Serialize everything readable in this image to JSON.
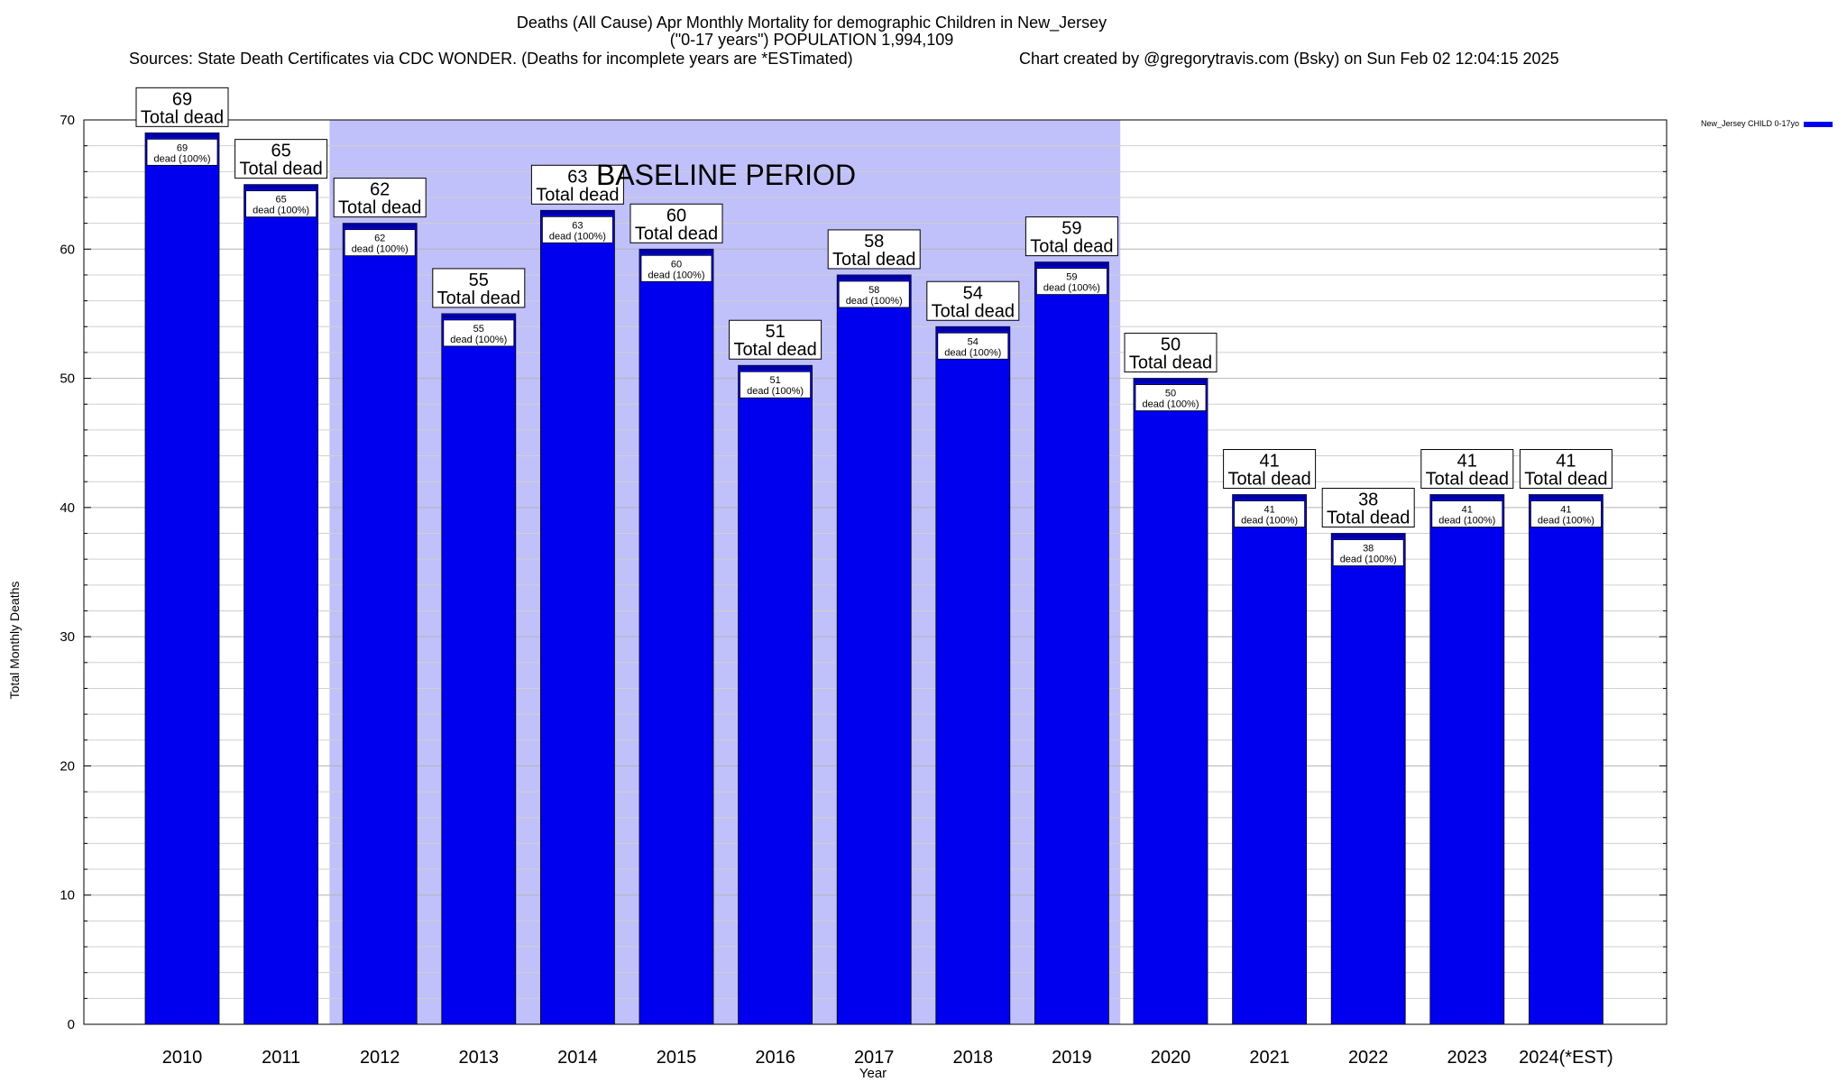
{
  "header": {
    "line1": "Deaths (All Cause) Apr Monthly Mortality for demographic Children in New_Jersey",
    "line2": "(\"0-17 years\") POPULATION 1,994,109",
    "sources": "Sources: State Death Certificates via CDC WONDER. (Deaths for incomplete years are *ESTimated)",
    "credit": "Chart created by @gregorytravis.com (Bsky) on Sun Feb 02 12:04:15 2025"
  },
  "chart_data": {
    "type": "bar",
    "title": "Deaths (All Cause) Apr Monthly Mortality for demographic Children in New_Jersey",
    "xlabel": "Year",
    "ylabel": "Total Monthly Deaths",
    "ylim": [
      0,
      70
    ],
    "yticks": [
      0,
      10,
      20,
      30,
      40,
      50,
      60,
      70
    ],
    "grid": true,
    "legend_position": "top-right",
    "categories": [
      "2010",
      "2011",
      "2012",
      "2013",
      "2014",
      "2015",
      "2016",
      "2017",
      "2018",
      "2019",
      "2020",
      "2021",
      "2022",
      "2023",
      "2024(*EST)"
    ],
    "series": [
      {
        "name": "New_Jersey CHILD 0-17yo",
        "color": "#0000ee",
        "values": [
          69,
          65,
          62,
          55,
          63,
          60,
          51,
          58,
          54,
          59,
          50,
          41,
          38,
          41,
          41
        ]
      }
    ],
    "total_label_suffix": "Total dead",
    "segment_label_suffix": "dead (100%)",
    "baseline": {
      "label": "BASELINE PERIOD",
      "from_category": "2012",
      "to_category": "2019",
      "color": "#c0c0fa"
    }
  }
}
